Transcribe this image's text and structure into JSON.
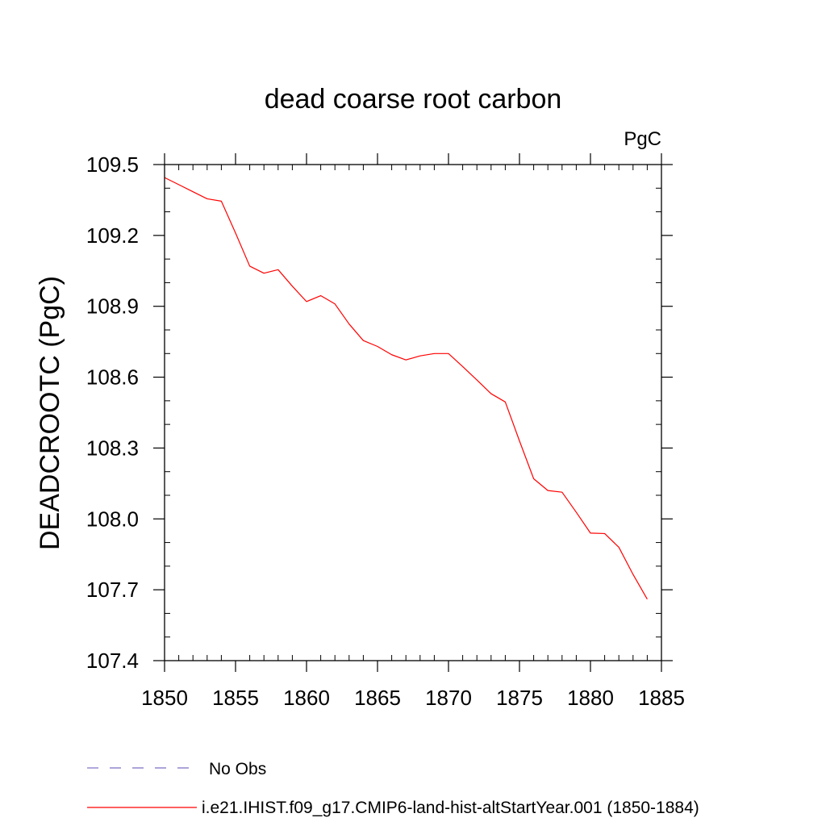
{
  "chart_data": {
    "type": "line",
    "title": "dead coarse root carbon",
    "units_label": "PgC",
    "ylabel": "DEADCROOTC  (PgC)",
    "xlabel": "",
    "xlim": [
      1850,
      1885
    ],
    "ylim": [
      107.4,
      109.5
    ],
    "x_ticks": [
      1850,
      1855,
      1860,
      1865,
      1870,
      1875,
      1880,
      1885
    ],
    "x_tick_labels": [
      "1850",
      "1855",
      "1860",
      "1865",
      "1870",
      "1875",
      "1880",
      "1885"
    ],
    "y_ticks": [
      107.4,
      107.7,
      108.0,
      108.3,
      108.6,
      108.9,
      109.2,
      109.5
    ],
    "y_tick_labels": [
      "107.4",
      "107.7",
      "108.0",
      "108.3",
      "108.6",
      "108.9",
      "109.2",
      "109.5"
    ],
    "x_minor_step": 1,
    "y_minor_step": 0.1,
    "grid": false,
    "legend_position": "bottom-left",
    "series": [
      {
        "name": "i.e21.IHIST.f09_g17.CMIP6-land-hist-altStartYear.001 (1850-1884)",
        "color": "#ff0000",
        "style": "solid",
        "x": [
          1850,
          1851,
          1852,
          1853,
          1854,
          1855,
          1856,
          1857,
          1858,
          1859,
          1860,
          1861,
          1862,
          1863,
          1864,
          1865,
          1866,
          1867,
          1868,
          1869,
          1870,
          1871,
          1872,
          1873,
          1874,
          1875,
          1876,
          1877,
          1878,
          1879,
          1880,
          1881,
          1882,
          1883,
          1884
        ],
        "values": [
          109.445,
          109.415,
          109.385,
          109.355,
          109.345,
          109.21,
          109.07,
          109.04,
          109.055,
          108.985,
          108.92,
          108.945,
          108.91,
          108.825,
          108.755,
          108.73,
          108.695,
          108.673,
          108.69,
          108.7,
          108.7,
          108.645,
          108.588,
          108.53,
          108.495,
          108.33,
          108.17,
          108.12,
          108.113,
          108.028,
          107.94,
          107.938,
          107.88,
          107.765,
          107.66
        ]
      },
      {
        "name": "No Obs",
        "color": "#7b6fc4",
        "style": "dashed",
        "x": [],
        "values": []
      }
    ]
  }
}
